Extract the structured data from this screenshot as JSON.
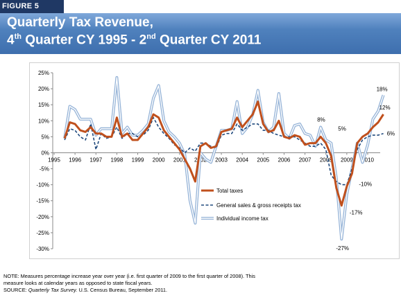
{
  "figure_label": "FIGURE 5",
  "title_line1": "Quarterly Tax Revenue,",
  "title_line2": {
    "a": "4",
    "a_sup": "th",
    "b": " Quarter CY 1995 - 2",
    "b_sup": "nd",
    "c": " Quarter CY 2011"
  },
  "note_line1": "NOTE: Measures percentage increase year over year (i.e. first quarter of 2009 to the first quarter of 2008).  This",
  "note_line2": "measure looks at calendar years as opposed to state fiscal years.",
  "source_prefix": "SOURCE: ",
  "source_title": "Quarterly Tax Survey.",
  "source_rest": " U.S. Census Bureau, September 2011.",
  "colors": {
    "banner": "#4f81bd",
    "total": "#c0501d",
    "sales": "#1f497d",
    "income": "#95b3d7"
  },
  "chart_data": {
    "type": "line",
    "x_start_year": 1995,
    "quarters_per_year": 4,
    "xticks": [
      "1995",
      "1996",
      "1997",
      "1998",
      "1999",
      "2000",
      "2001",
      "2002",
      "2003",
      "2004",
      "2005",
      "2006",
      "2007",
      "2008",
      "2009",
      "2010"
    ],
    "yticks": [
      "25%",
      "20%",
      "15%",
      "10%",
      "5%",
      "0%",
      "-5%",
      "-10%",
      "-15%",
      "-20%",
      "-25%",
      "-30%"
    ],
    "ylim": [
      -30,
      25
    ],
    "legend_position": "center-right",
    "series": [
      {
        "name": "Total taxes",
        "style": "solid-thick",
        "values": [
          4.5,
          9.5,
          9,
          7,
          6.5,
          8,
          6,
          6,
          5,
          5,
          11,
          5,
          6,
          4,
          4,
          6,
          8,
          12,
          11,
          7,
          5,
          3,
          1,
          -2,
          -5,
          -9,
          2,
          3,
          1.5,
          2,
          6.5,
          7,
          7.5,
          11,
          8,
          10,
          12,
          16,
          9,
          6.5,
          7,
          10,
          5,
          4.5,
          5.5,
          5,
          2.5,
          3,
          3,
          5,
          3,
          -1,
          -11,
          -16.5,
          -10.5,
          -6.5,
          3,
          5,
          6,
          8,
          9.5,
          12
        ]
      },
      {
        "name": "General sales & gross receipts tax",
        "style": "dashed",
        "values": [
          4,
          7.5,
          7,
          5,
          4,
          9,
          1,
          6,
          4.5,
          5,
          8,
          4.5,
          6,
          6,
          5,
          5.5,
          7,
          11,
          8,
          6,
          4.5,
          2.5,
          1.5,
          0,
          1.5,
          0.5,
          3,
          3,
          2,
          1.5,
          5.5,
          6,
          6,
          9,
          7,
          8,
          9,
          9,
          7,
          7,
          6,
          5.5,
          5,
          5,
          5,
          4,
          3,
          2,
          2,
          3,
          1,
          -7,
          -9,
          -10,
          -10,
          -5,
          1,
          4,
          5,
          5.5,
          5.5,
          6
        ]
      },
      {
        "name": "Individual income tax",
        "style": "double",
        "values": [
          4.5,
          14.5,
          13.5,
          10.5,
          10.5,
          10.5,
          5.5,
          7.5,
          7.5,
          7.5,
          23.5,
          6,
          8,
          5.5,
          5.5,
          7,
          9,
          17,
          21,
          10,
          6.5,
          5,
          3,
          -0.5,
          -15,
          -22,
          0,
          -2,
          -3,
          2,
          7,
          7,
          7.5,
          16,
          6,
          8,
          12,
          19.5,
          9.5,
          6.5,
          8,
          18.5,
          6,
          4.5,
          8.5,
          9,
          6,
          5.5,
          2,
          8,
          4,
          3,
          -8,
          -27,
          -13,
          -5,
          3,
          -3,
          2.5,
          10.5,
          13,
          18
        ]
      }
    ],
    "annotations": [
      {
        "text": "18%",
        "xi": 61,
        "y": 18,
        "series": 2
      },
      {
        "text": "12%",
        "xi": 61,
        "y": 12,
        "series": 0
      },
      {
        "text": "6%",
        "xi": 61,
        "y": 6,
        "series": 1
      },
      {
        "text": "8%",
        "xi": 49,
        "y": 8,
        "series": 2
      },
      {
        "text": "5%",
        "xi": 51,
        "y": 5,
        "series": 0
      },
      {
        "text": "-10%",
        "xi": 55,
        "y": -10,
        "series": 1
      },
      {
        "text": "-17%",
        "xi": 54,
        "y": -16.5,
        "series": 0
      },
      {
        "text": "-27%",
        "xi": 53,
        "y": -27,
        "series": 2
      }
    ]
  }
}
